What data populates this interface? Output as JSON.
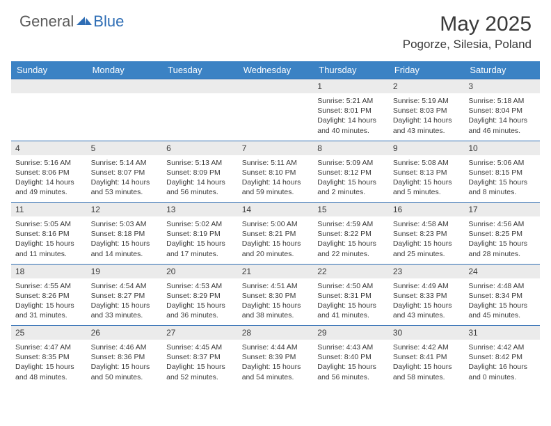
{
  "brand": {
    "general": "General",
    "blue": "Blue"
  },
  "month": "May 2025",
  "location": "Pogorze, Silesia, Poland",
  "colors": {
    "header_bg": "#3b82c4",
    "header_text": "#ffffff",
    "daynum_bg": "#ebebeb",
    "border": "#2f6eb5",
    "text": "#3a3a3a",
    "brand_gray": "#5a5a5a",
    "brand_blue": "#2f6eb5"
  },
  "weekdays": [
    "Sunday",
    "Monday",
    "Tuesday",
    "Wednesday",
    "Thursday",
    "Friday",
    "Saturday"
  ],
  "weeks": [
    [
      null,
      null,
      null,
      null,
      {
        "n": "1",
        "sr": "5:21 AM",
        "ss": "8:01 PM",
        "dl": "14 hours and 40 minutes."
      },
      {
        "n": "2",
        "sr": "5:19 AM",
        "ss": "8:03 PM",
        "dl": "14 hours and 43 minutes."
      },
      {
        "n": "3",
        "sr": "5:18 AM",
        "ss": "8:04 PM",
        "dl": "14 hours and 46 minutes."
      }
    ],
    [
      {
        "n": "4",
        "sr": "5:16 AM",
        "ss": "8:06 PM",
        "dl": "14 hours and 49 minutes."
      },
      {
        "n": "5",
        "sr": "5:14 AM",
        "ss": "8:07 PM",
        "dl": "14 hours and 53 minutes."
      },
      {
        "n": "6",
        "sr": "5:13 AM",
        "ss": "8:09 PM",
        "dl": "14 hours and 56 minutes."
      },
      {
        "n": "7",
        "sr": "5:11 AM",
        "ss": "8:10 PM",
        "dl": "14 hours and 59 minutes."
      },
      {
        "n": "8",
        "sr": "5:09 AM",
        "ss": "8:12 PM",
        "dl": "15 hours and 2 minutes."
      },
      {
        "n": "9",
        "sr": "5:08 AM",
        "ss": "8:13 PM",
        "dl": "15 hours and 5 minutes."
      },
      {
        "n": "10",
        "sr": "5:06 AM",
        "ss": "8:15 PM",
        "dl": "15 hours and 8 minutes."
      }
    ],
    [
      {
        "n": "11",
        "sr": "5:05 AM",
        "ss": "8:16 PM",
        "dl": "15 hours and 11 minutes."
      },
      {
        "n": "12",
        "sr": "5:03 AM",
        "ss": "8:18 PM",
        "dl": "15 hours and 14 minutes."
      },
      {
        "n": "13",
        "sr": "5:02 AM",
        "ss": "8:19 PM",
        "dl": "15 hours and 17 minutes."
      },
      {
        "n": "14",
        "sr": "5:00 AM",
        "ss": "8:21 PM",
        "dl": "15 hours and 20 minutes."
      },
      {
        "n": "15",
        "sr": "4:59 AM",
        "ss": "8:22 PM",
        "dl": "15 hours and 22 minutes."
      },
      {
        "n": "16",
        "sr": "4:58 AM",
        "ss": "8:23 PM",
        "dl": "15 hours and 25 minutes."
      },
      {
        "n": "17",
        "sr": "4:56 AM",
        "ss": "8:25 PM",
        "dl": "15 hours and 28 minutes."
      }
    ],
    [
      {
        "n": "18",
        "sr": "4:55 AM",
        "ss": "8:26 PM",
        "dl": "15 hours and 31 minutes."
      },
      {
        "n": "19",
        "sr": "4:54 AM",
        "ss": "8:27 PM",
        "dl": "15 hours and 33 minutes."
      },
      {
        "n": "20",
        "sr": "4:53 AM",
        "ss": "8:29 PM",
        "dl": "15 hours and 36 minutes."
      },
      {
        "n": "21",
        "sr": "4:51 AM",
        "ss": "8:30 PM",
        "dl": "15 hours and 38 minutes."
      },
      {
        "n": "22",
        "sr": "4:50 AM",
        "ss": "8:31 PM",
        "dl": "15 hours and 41 minutes."
      },
      {
        "n": "23",
        "sr": "4:49 AM",
        "ss": "8:33 PM",
        "dl": "15 hours and 43 minutes."
      },
      {
        "n": "24",
        "sr": "4:48 AM",
        "ss": "8:34 PM",
        "dl": "15 hours and 45 minutes."
      }
    ],
    [
      {
        "n": "25",
        "sr": "4:47 AM",
        "ss": "8:35 PM",
        "dl": "15 hours and 48 minutes."
      },
      {
        "n": "26",
        "sr": "4:46 AM",
        "ss": "8:36 PM",
        "dl": "15 hours and 50 minutes."
      },
      {
        "n": "27",
        "sr": "4:45 AM",
        "ss": "8:37 PM",
        "dl": "15 hours and 52 minutes."
      },
      {
        "n": "28",
        "sr": "4:44 AM",
        "ss": "8:39 PM",
        "dl": "15 hours and 54 minutes."
      },
      {
        "n": "29",
        "sr": "4:43 AM",
        "ss": "8:40 PM",
        "dl": "15 hours and 56 minutes."
      },
      {
        "n": "30",
        "sr": "4:42 AM",
        "ss": "8:41 PM",
        "dl": "15 hours and 58 minutes."
      },
      {
        "n": "31",
        "sr": "4:42 AM",
        "ss": "8:42 PM",
        "dl": "16 hours and 0 minutes."
      }
    ]
  ],
  "labels": {
    "sunrise": "Sunrise:",
    "sunset": "Sunset:",
    "daylight": "Daylight:"
  }
}
